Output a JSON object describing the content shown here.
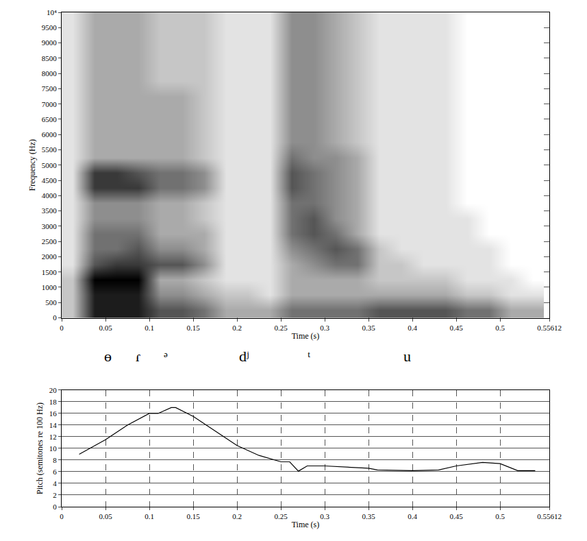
{
  "chart_data": [
    {
      "type": "heatmap",
      "x_label": "Time (s)",
      "y_label": "Frequency (Hz)",
      "color": "#000000",
      "grid": true,
      "x": [
        0.0125,
        0.0375,
        0.0625,
        0.0875,
        0.1125,
        0.1375,
        0.1625,
        0.1875,
        0.2125,
        0.2375,
        0.2625,
        0.2875,
        0.3125,
        0.3375,
        0.3625,
        0.3875,
        0.4125,
        0.4375,
        0.4625,
        0.4875,
        0.5125,
        0.5375
      ],
      "y": [
        250,
        750,
        1250,
        1750,
        2250,
        2750,
        3250,
        3750,
        4250,
        4750,
        5250,
        5750,
        6250,
        6750,
        7250,
        7750,
        8250,
        8750,
        9250,
        9750
      ],
      "cells": [
        [
          2,
          8,
          8,
          8,
          6,
          6,
          5,
          3,
          3,
          3,
          5,
          5,
          5,
          5,
          6,
          6,
          6,
          6,
          5,
          5,
          3,
          3
        ],
        [
          2,
          8,
          8,
          8,
          4,
          4,
          3,
          2,
          2,
          1,
          3,
          3,
          3,
          3,
          3,
          3,
          3,
          3,
          2,
          2,
          1,
          1
        ],
        [
          2,
          9,
          9,
          9,
          3,
          3,
          2,
          1,
          1,
          1,
          3,
          3,
          3,
          3,
          2,
          2,
          2,
          2,
          1,
          1,
          1,
          0
        ],
        [
          1,
          6,
          7,
          7,
          6,
          6,
          4,
          1,
          1,
          1,
          3,
          4,
          5,
          5,
          2,
          2,
          1,
          1,
          1,
          1,
          0,
          0
        ],
        [
          1,
          5,
          5,
          6,
          4,
          4,
          3,
          1,
          1,
          1,
          4,
          5,
          6,
          5,
          2,
          1,
          1,
          1,
          1,
          1,
          0,
          0
        ],
        [
          1,
          5,
          5,
          5,
          3,
          3,
          3,
          1,
          1,
          1,
          5,
          6,
          5,
          3,
          1,
          1,
          1,
          1,
          1,
          0,
          0,
          0
        ],
        [
          1,
          4,
          4,
          4,
          3,
          3,
          2,
          1,
          1,
          1,
          5,
          6,
          4,
          3,
          1,
          1,
          1,
          1,
          1,
          0,
          0,
          0
        ],
        [
          1,
          4,
          4,
          4,
          3,
          3,
          2,
          1,
          1,
          1,
          5,
          5,
          4,
          3,
          1,
          1,
          1,
          1,
          0,
          0,
          0,
          0
        ],
        [
          1,
          7,
          7,
          7,
          5,
          5,
          4,
          1,
          1,
          1,
          6,
          5,
          4,
          3,
          1,
          1,
          1,
          1,
          0,
          0,
          0,
          0
        ],
        [
          1,
          7,
          7,
          6,
          5,
          5,
          4,
          1,
          1,
          1,
          6,
          5,
          4,
          3,
          1,
          1,
          1,
          1,
          0,
          0,
          0,
          0
        ],
        [
          1,
          3,
          3,
          3,
          3,
          3,
          2,
          1,
          1,
          1,
          5,
          4,
          4,
          3,
          1,
          1,
          1,
          1,
          0,
          0,
          0,
          0
        ],
        [
          1,
          3,
          3,
          3,
          3,
          3,
          2,
          1,
          1,
          1,
          4,
          4,
          3,
          2,
          1,
          1,
          1,
          1,
          0,
          0,
          0,
          0
        ],
        [
          1,
          3,
          3,
          3,
          3,
          3,
          2,
          1,
          1,
          1,
          4,
          4,
          3,
          2,
          1,
          1,
          1,
          1,
          0,
          0,
          0,
          0
        ],
        [
          1,
          3,
          3,
          3,
          3,
          3,
          2,
          1,
          1,
          1,
          4,
          4,
          3,
          2,
          1,
          1,
          1,
          1,
          0,
          0,
          0,
          0
        ],
        [
          1,
          3,
          3,
          3,
          3,
          3,
          2,
          1,
          1,
          1,
          4,
          4,
          3,
          2,
          1,
          1,
          1,
          1,
          0,
          0,
          0,
          0
        ],
        [
          1,
          3,
          3,
          3,
          2,
          2,
          2,
          1,
          1,
          1,
          4,
          4,
          3,
          2,
          1,
          1,
          1,
          1,
          0,
          0,
          0,
          0
        ],
        [
          1,
          3,
          3,
          3,
          2,
          2,
          2,
          1,
          1,
          1,
          4,
          4,
          3,
          2,
          1,
          1,
          1,
          1,
          0,
          0,
          0,
          0
        ],
        [
          1,
          3,
          3,
          3,
          2,
          2,
          2,
          1,
          1,
          1,
          4,
          4,
          3,
          2,
          1,
          1,
          1,
          1,
          0,
          0,
          0,
          0
        ],
        [
          1,
          3,
          3,
          3,
          2,
          2,
          2,
          1,
          1,
          1,
          4,
          4,
          3,
          2,
          1,
          1,
          1,
          1,
          0,
          0,
          0,
          0
        ],
        [
          1,
          3,
          3,
          3,
          2,
          2,
          2,
          1,
          1,
          1,
          4,
          4,
          3,
          2,
          1,
          1,
          1,
          1,
          0,
          0,
          0,
          0
        ]
      ],
      "xlim": [
        0,
        0.55612
      ],
      "xticks": [
        0,
        0.05,
        0.1,
        0.15,
        0.2,
        0.25,
        0.3,
        0.35,
        0.4,
        0.45,
        0.5,
        {
          "value": 0.55612,
          "label": "0.55612"
        }
      ],
      "ylim": [
        0,
        10000
      ],
      "yticks": [
        0,
        500,
        1000,
        1500,
        2000,
        2500,
        3000,
        3500,
        4000,
        4500,
        5000,
        5500,
        6000,
        6500,
        7000,
        7500,
        8000,
        8500,
        9000,
        9500,
        {
          "value": 10000,
          "label": "10⁴"
        }
      ]
    },
    {
      "type": "line",
      "x_label": "Time (s)",
      "y_label": "Pitch (semitones re 100 Hz)",
      "color": "#000000",
      "grid": true,
      "x": [
        0.02,
        0.05,
        0.075,
        0.1,
        0.11,
        0.125,
        0.13,
        0.15,
        0.175,
        0.2,
        0.225,
        0.25,
        0.26,
        0.27,
        0.28,
        0.3,
        0.35,
        0.36,
        0.4,
        0.43,
        0.45,
        0.48,
        0.5,
        0.52,
        0.54
      ],
      "values": [
        9,
        11.5,
        14,
        16,
        16,
        17,
        17,
        15.5,
        13,
        10.5,
        8.8,
        7.7,
        7.7,
        6.1,
        7,
        7,
        6.6,
        6.3,
        6.2,
        6.3,
        7,
        7.6,
        7.4,
        6.2,
        6.2
      ],
      "xlim": [
        0,
        0.55612
      ],
      "xticks": [
        0,
        0.05,
        0.1,
        0.15,
        0.2,
        0.25,
        0.3,
        0.35,
        0.4,
        0.45,
        0.5,
        {
          "value": 0.55612,
          "label": "0.55612"
        }
      ],
      "ylim": [
        0,
        20
      ],
      "yticks": [
        0,
        2,
        4,
        6,
        8,
        10,
        12,
        14,
        16,
        18,
        20
      ],
      "annotations": [
        {
          "text": "ɵ",
          "x": 0.053
        },
        {
          "text": "ɾ",
          "x": 0.087
        },
        {
          "text": "ᵊ",
          "x": 0.119
        },
        {
          "text": "dʲ",
          "x": 0.208
        },
        {
          "text": "ᵗ",
          "x": 0.282
        },
        {
          "text": "u",
          "x": 0.394
        }
      ]
    }
  ]
}
